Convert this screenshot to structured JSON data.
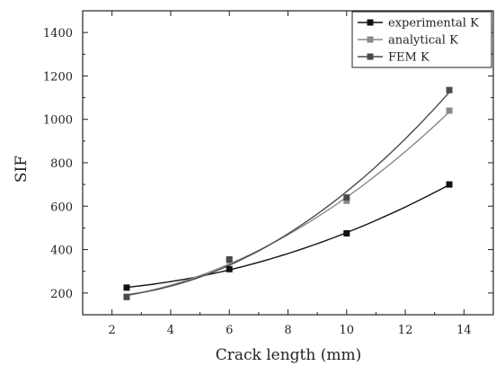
{
  "chart_data": {
    "type": "scatter",
    "xlabel": "Crack length (mm)",
    "ylabel": "SIF",
    "xlim": [
      1,
      15
    ],
    "ylim": [
      100,
      1500
    ],
    "xticks": [
      2,
      4,
      6,
      8,
      10,
      12,
      14
    ],
    "yticks": [
      200,
      400,
      600,
      800,
      1000,
      1200,
      1400
    ],
    "grid": false,
    "legend_position": "top-right",
    "series": [
      {
        "name": "experimental K",
        "color": "#111111",
        "curve": "polynomial-fit",
        "x": [
          2.5,
          6,
          10,
          13.5
        ],
        "y": [
          225,
          310,
          475,
          700
        ]
      },
      {
        "name": "analytical K",
        "color": "#8a8a8a",
        "curve": "polynomial-fit",
        "x": [
          2.5,
          6,
          10,
          13.5
        ],
        "y": [
          182,
          350,
          625,
          1040
        ]
      },
      {
        "name": "FEM K",
        "color": "#4a4a4a",
        "curve": "polynomial-fit",
        "x": [
          2.5,
          6,
          10,
          13.5
        ],
        "y": [
          182,
          355,
          640,
          1135
        ]
      }
    ]
  }
}
